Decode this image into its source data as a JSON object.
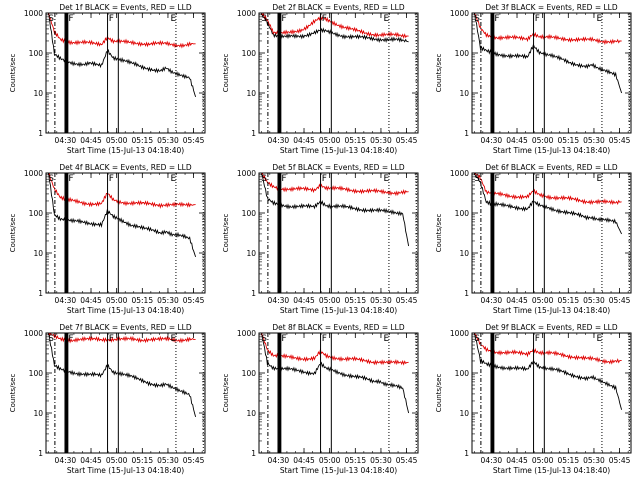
{
  "colors": {
    "events": "#000000",
    "lld": "#e00000",
    "axis": "#000000"
  },
  "chart_data": [
    {
      "type": "line",
      "title": "Det 1f BLACK = Events, RED = LLD",
      "xlabel": "Start Time (15-Jul-13 04:18:40)",
      "ylabel": "Counts/sec",
      "yscale": "log",
      "ylim": [
        1,
        1000
      ],
      "xlim_minutes_after_start": [
        0,
        93
      ],
      "xticks": [
        "04:30",
        "04:45",
        "05:00",
        "05:15",
        "05:30",
        "05:45"
      ],
      "yticks": [
        "1",
        "10",
        "100",
        "1000"
      ],
      "markers": [
        "S",
        "F",
        "F",
        "E"
      ],
      "series": [
        {
          "color": "black",
          "values": [
            1000,
            90,
            70,
            62,
            58,
            55,
            52,
            54,
            50,
            48,
            120,
            80,
            70,
            62,
            55,
            50,
            45,
            42,
            38,
            35,
            40,
            32,
            30,
            28,
            25,
            8
          ]
        },
        {
          "color": "red",
          "values": [
            1000,
            320,
            220,
            200,
            190,
            185,
            180,
            175,
            170,
            168,
            260,
            200,
            190,
            185,
            180,
            178,
            175,
            170,
            172,
            168,
            170,
            165,
            162,
            160,
            165,
            170
          ]
        }
      ]
    },
    {
      "type": "line",
      "title": "Det 2f BLACK = Events, RED = LLD",
      "xlabel": "Start Time (15-Jul-13 04:18:40)",
      "ylabel": "Counts/sec",
      "yscale": "log",
      "ylim": [
        1,
        1000
      ],
      "xlim_minutes_after_start": [
        0,
        93
      ],
      "xticks": [
        "04:30",
        "04:45",
        "05:00",
        "05:15",
        "05:30",
        "05:45"
      ],
      "yticks": [
        "1",
        "10",
        "100",
        "1000"
      ],
      "markers": [
        "S",
        "F",
        "F",
        "E"
      ],
      "series": [
        {
          "color": "black",
          "values": [
            1000,
            600,
            300,
            260,
            250,
            255,
            260,
            270,
            300,
            330,
            360,
            340,
            310,
            290,
            270,
            260,
            250,
            240,
            235,
            230,
            225,
            220,
            215,
            210,
            200,
            190
          ]
        },
        {
          "color": "red",
          "values": [
            1000,
            700,
            330,
            300,
            310,
            330,
            360,
            400,
            480,
            600,
            720,
            680,
            600,
            520,
            450,
            400,
            360,
            330,
            310,
            300,
            290,
            285,
            280,
            275,
            270,
            265
          ]
        }
      ]
    },
    {
      "type": "line",
      "title": "Det 3f BLACK = Events, RED = LLD",
      "xlabel": "Start Time (15-Jul-13 04:18:40)",
      "ylabel": "Counts/sec",
      "yscale": "log",
      "ylim": [
        1,
        1000
      ],
      "xlim_minutes_after_start": [
        0,
        93
      ],
      "xticks": [
        "04:30",
        "04:45",
        "05:00",
        "05:15",
        "05:30",
        "05:45"
      ],
      "yticks": [
        "1",
        "10",
        "100",
        "1000"
      ],
      "markers": [
        "S",
        "F",
        "F",
        "E"
      ],
      "series": [
        {
          "color": "black",
          "values": [
            1000,
            130,
            110,
            100,
            95,
            90,
            85,
            82,
            80,
            78,
            160,
            110,
            95,
            85,
            75,
            68,
            60,
            55,
            50,
            45,
            48,
            40,
            38,
            35,
            30,
            10
          ]
        },
        {
          "color": "red",
          "values": [
            1000,
            400,
            280,
            260,
            250,
            245,
            240,
            235,
            230,
            228,
            320,
            260,
            245,
            240,
            235,
            230,
            225,
            220,
            215,
            210,
            212,
            205,
            200,
            198,
            195,
            200
          ]
        }
      ]
    },
    {
      "type": "line",
      "title": "Det 4f BLACK = Events, RED = LLD",
      "xlabel": "Start Time (15-Jul-13 04:18:40)",
      "ylabel": "Counts/sec",
      "yscale": "log",
      "ylim": [
        1,
        1000
      ],
      "xlim_minutes_after_start": [
        0,
        93
      ],
      "xticks": [
        "04:30",
        "04:45",
        "05:00",
        "05:15",
        "05:30",
        "05:45"
      ],
      "yticks": [
        "1",
        "10",
        "100",
        "1000"
      ],
      "markers": [
        "S",
        "F",
        "F",
        "E"
      ],
      "series": [
        {
          "color": "black",
          "values": [
            1000,
            95,
            75,
            68,
            62,
            60,
            58,
            56,
            55,
            52,
            110,
            78,
            68,
            60,
            52,
            48,
            42,
            38,
            35,
            32,
            36,
            30,
            28,
            25,
            22,
            8
          ]
        },
        {
          "color": "red",
          "values": [
            1000,
            420,
            250,
            210,
            200,
            190,
            180,
            175,
            170,
            168,
            300,
            210,
            195,
            185,
            180,
            175,
            170,
            168,
            165,
            162,
            165,
            160,
            158,
            155,
            160,
            162
          ]
        }
      ]
    },
    {
      "type": "line",
      "title": "Det 5f BLACK = Events, RED = LLD",
      "xlabel": "Start Time (15-Jul-13 04:18:40)",
      "ylabel": "Counts/sec",
      "yscale": "log",
      "ylim": [
        1,
        1000
      ],
      "xlim_minutes_after_start": [
        0,
        93
      ],
      "xticks": [
        "04:30",
        "04:45",
        "05:00",
        "05:15",
        "05:30",
        "05:45"
      ],
      "yticks": [
        "1",
        "10",
        "100",
        "1000"
      ],
      "markers": [
        "S",
        "F",
        "F",
        "E"
      ],
      "series": [
        {
          "color": "black",
          "values": [
            1000,
            220,
            170,
            160,
            155,
            150,
            148,
            145,
            142,
            140,
            200,
            160,
            150,
            145,
            140,
            135,
            130,
            125,
            120,
            115,
            112,
            110,
            108,
            105,
            100,
            15
          ]
        },
        {
          "color": "red",
          "values": [
            1000,
            550,
            450,
            420,
            410,
            400,
            395,
            390,
            385,
            380,
            520,
            430,
            410,
            400,
            390,
            380,
            370,
            360,
            350,
            345,
            340,
            335,
            330,
            325,
            330,
            340
          ]
        }
      ]
    },
    {
      "type": "line",
      "title": "Det 6f BLACK = Events, RED = LLD",
      "xlabel": "Start Time (15-Jul-13 04:18:40)",
      "ylabel": "Counts/sec",
      "yscale": "log",
      "ylim": [
        1,
        1000
      ],
      "xlim_minutes_after_start": [
        0,
        93
      ],
      "xticks": [
        "04:30",
        "04:45",
        "05:00",
        "05:15",
        "05:30",
        "05:45"
      ],
      "yticks": [
        "1",
        "10",
        "100",
        "1000"
      ],
      "markers": [
        "S",
        "F",
        "F",
        "E"
      ],
      "series": [
        {
          "color": "black",
          "values": [
            1000,
            600,
            200,
            170,
            160,
            150,
            145,
            140,
            135,
            130,
            190,
            150,
            140,
            130,
            120,
            110,
            100,
            92,
            85,
            78,
            80,
            72,
            68,
            62,
            58,
            30
          ]
        },
        {
          "color": "red",
          "values": [
            1000,
            800,
            340,
            300,
            290,
            280,
            270,
            265,
            258,
            250,
            340,
            280,
            265,
            255,
            245,
            235,
            225,
            215,
            205,
            198,
            195,
            190,
            185,
            180,
            182,
            190
          ]
        }
      ]
    },
    {
      "type": "line",
      "title": "Det 7f BLACK = Events, RED = LLD",
      "xlabel": "Start Time (15-Jul-13 04:18:40)",
      "ylabel": "Counts/sec",
      "yscale": "log",
      "ylim": [
        1,
        1000
      ],
      "xlim_minutes_after_start": [
        0,
        93
      ],
      "xticks": [
        "04:30",
        "04:45",
        "05:00",
        "05:15",
        "05:30",
        "05:45"
      ],
      "yticks": [
        "1",
        "10",
        "100",
        "1000"
      ],
      "markers": [
        "S",
        "F",
        "F",
        "E"
      ],
      "series": [
        {
          "color": "black",
          "values": [
            1000,
            150,
            120,
            110,
            105,
            100,
            95,
            90,
            88,
            85,
            160,
            110,
            100,
            90,
            80,
            72,
            65,
            58,
            52,
            48,
            50,
            42,
            38,
            35,
            30,
            8
          ]
        },
        {
          "color": "red",
          "values": [
            1000,
            800,
            700,
            690,
            680,
            700,
            690,
            680,
            700,
            690,
            720,
            700,
            690,
            680,
            700,
            690,
            680,
            700,
            690,
            680,
            690,
            700,
            680,
            690,
            700,
            690
          ]
        }
      ]
    },
    {
      "type": "line",
      "title": "Det 8f BLACK = Events, RED = LLD",
      "xlabel": "Start Time (15-Jul-13 04:18:40)",
      "ylabel": "Counts/sec",
      "yscale": "log",
      "ylim": [
        1,
        1000
      ],
      "xlim_minutes_after_start": [
        0,
        93
      ],
      "xticks": [
        "04:30",
        "04:45",
        "05:00",
        "05:15",
        "05:30",
        "05:45"
      ],
      "yticks": [
        "1",
        "10",
        "100",
        "1000"
      ],
      "markers": [
        "S",
        "F",
        "F",
        "E"
      ],
      "series": [
        {
          "color": "black",
          "values": [
            1000,
            180,
            140,
            130,
            125,
            120,
            115,
            110,
            105,
            100,
            170,
            125,
            115,
            105,
            95,
            88,
            80,
            75,
            68,
            62,
            65,
            55,
            50,
            45,
            40,
            10
          ]
        },
        {
          "color": "red",
          "values": [
            1000,
            400,
            280,
            260,
            250,
            245,
            240,
            235,
            230,
            228,
            330,
            260,
            245,
            240,
            230,
            225,
            215,
            205,
            198,
            192,
            195,
            185,
            180,
            178,
            180,
            185
          ]
        }
      ]
    },
    {
      "type": "line",
      "title": "Det 9f BLACK = Events, RED = LLD",
      "xlabel": "Start Time (15-Jul-13 04:18:40)",
      "ylabel": "Counts/sec",
      "yscale": "log",
      "ylim": [
        1,
        1000
      ],
      "xlim_minutes_after_start": [
        0,
        93
      ],
      "xticks": [
        "04:30",
        "04:45",
        "05:00",
        "05:15",
        "05:30",
        "05:45"
      ],
      "yticks": [
        "1",
        "10",
        "100",
        "1000"
      ],
      "markers": [
        "S",
        "F",
        "F",
        "E"
      ],
      "series": [
        {
          "color": "black",
          "values": [
            1000,
            200,
            160,
            150,
            145,
            140,
            135,
            130,
            125,
            120,
            200,
            150,
            135,
            125,
            115,
            105,
            95,
            88,
            80,
            72,
            75,
            65,
            58,
            52,
            45,
            12
          ]
        },
        {
          "color": "red",
          "values": [
            1000,
            500,
            380,
            350,
            340,
            330,
            320,
            315,
            305,
            300,
            400,
            330,
            315,
            305,
            295,
            285,
            270,
            255,
            240,
            225,
            222,
            215,
            205,
            198,
            200,
            205
          ]
        }
      ]
    }
  ]
}
